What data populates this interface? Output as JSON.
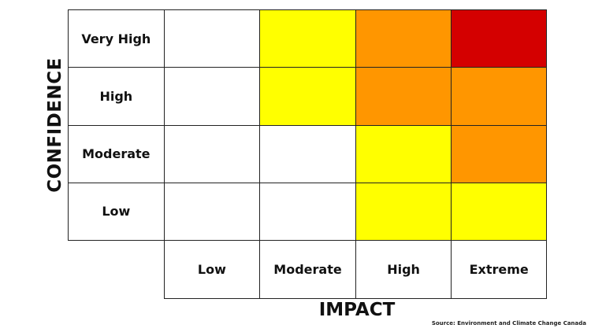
{
  "axes": {
    "y_title": "CONFIDENCE",
    "x_title": "IMPACT",
    "confidence_levels": [
      "Very High",
      "High",
      "Moderate",
      "Low"
    ],
    "impact_levels": [
      "Low",
      "Moderate",
      "High",
      "Extreme"
    ]
  },
  "colors": {
    "none": "#ffffff",
    "yellow": "#ffff00",
    "orange": "#ff9600",
    "red": "#d40000"
  },
  "matrix": [
    [
      "none",
      "yellow",
      "orange",
      "red"
    ],
    [
      "none",
      "yellow",
      "orange",
      "orange"
    ],
    [
      "none",
      "none",
      "yellow",
      "orange"
    ],
    [
      "none",
      "none",
      "yellow",
      "yellow"
    ]
  ],
  "source": "Source: Environment and Climate Change Canada"
}
